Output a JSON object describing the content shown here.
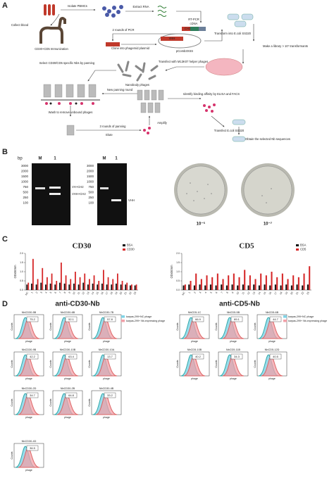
{
  "panel_a": {
    "label": "A",
    "texts": [
      "Isolate PBMCs",
      "Extract RNA",
      "Collect blood",
      "RT-PCR",
      "CD30+CD5 Immunization",
      "cDNA",
      "2 rounds of PCR",
      "Clone into phagemid plasmid",
      "pComb3XSS",
      "Transform into E.coli SS320",
      "Make a library > 10⁷ transformants",
      "Select CD30/CD5 specific Nbs by panning",
      "Transfect with M13K07 helper phages",
      "Nanobody phages",
      "New panning round",
      "Identify binding affinity by ELISA and FACS",
      "Wash to remove unbound phages",
      "3 rounds of panning",
      "Amplify",
      "Elute",
      "Transfect E.coli SS320",
      "Obtain the selected Nb sequences",
      "VHH",
      "CH2"
    ]
  },
  "panel_b": {
    "label": "B",
    "bp": "bp",
    "lanes": [
      "M",
      "1"
    ],
    "markers": [
      "3000",
      "2000",
      "1500",
      "1000",
      "750",
      "500",
      "250",
      "100"
    ],
    "gel1_bands": [
      "VH+CH2",
      "VHH+CH2"
    ],
    "gel2_band": "VHH",
    "plates": [
      "10⁻⁵",
      "10⁻⁷"
    ]
  },
  "panel_c": {
    "label": "C",
    "charts": [
      {
        "type": "bar",
        "title": "CD30",
        "y_label": "OD450nm",
        "categories": [
          "NC",
          "1",
          "2",
          "3",
          "4",
          "5",
          "6",
          "7",
          "8",
          "9",
          "10",
          "11",
          "12",
          "13",
          "14",
          "15",
          "16",
          "17",
          "18",
          "19",
          "20",
          "21",
          "22",
          "23"
        ],
        "ylim": [
          0,
          2
        ],
        "yticks": [
          {
            "value": 0,
            "label": "0.0"
          },
          {
            "value": 0.5,
            "label": "0.5"
          },
          {
            "value": 1,
            "label": "1.0"
          },
          {
            "value": 1.5,
            "label": "1.5"
          },
          {
            "value": 2,
            "label": "2.0"
          }
        ],
        "series": [
          {
            "name": "BSA",
            "color": "#111111",
            "values": [
              0.3,
              0.35,
              0.3,
              0.4,
              0.3,
              0.35,
              0.3,
              0.4,
              0.35,
              0.3,
              0.35,
              0.3,
              0.4,
              0.3,
              0.35,
              0.3,
              0.35,
              0.3,
              0.3,
              0.35,
              0.3,
              0.3,
              0.25,
              0.25
            ]
          },
          {
            "name": "CD30",
            "color": "#d62728",
            "values": [
              0.4,
              1.7,
              0.6,
              1.2,
              0.7,
              0.9,
              0.5,
              1.5,
              0.8,
              0.6,
              1.0,
              0.7,
              0.9,
              0.6,
              0.8,
              0.5,
              1.1,
              0.7,
              0.6,
              0.9,
              0.5,
              0.4,
              0.3,
              0.3
            ]
          }
        ]
      },
      {
        "type": "bar",
        "title": "CD5",
        "y_label": "OD450nm",
        "categories": [
          "NC",
          "1",
          "2",
          "3",
          "4",
          "5",
          "6",
          "7",
          "8",
          "9",
          "10",
          "11",
          "12",
          "13",
          "14",
          "15",
          "16",
          "17",
          "18",
          "19",
          "20",
          "21",
          "22",
          "23"
        ],
        "ylim": [
          0,
          2
        ],
        "yticks": [
          {
            "value": 0,
            "label": "0.0"
          },
          {
            "value": 0.5,
            "label": "0.5"
          },
          {
            "value": 1,
            "label": "1.0"
          },
          {
            "value": 1.5,
            "label": "1.5"
          },
          {
            "value": 2,
            "label": "2.0"
          }
        ],
        "series": [
          {
            "name": "BSA",
            "color": "#111111",
            "values": [
              0.25,
              0.3,
              0.25,
              0.3,
              0.25,
              0.3,
              0.25,
              0.3,
              0.25,
              0.3,
              0.25,
              0.3,
              0.25,
              0.3,
              0.25,
              0.3,
              0.25,
              0.3,
              0.25,
              0.3,
              0.25,
              0.3,
              0.25,
              0.3
            ]
          },
          {
            "name": "CD5",
            "color": "#d62728",
            "values": [
              0.3,
              0.5,
              0.9,
              0.6,
              0.8,
              0.7,
              0.9,
              0.6,
              0.8,
              0.9,
              0.7,
              1.1,
              0.8,
              0.6,
              0.9,
              0.8,
              1.0,
              0.7,
              0.9,
              0.6,
              0.8,
              0.7,
              0.9,
              1.3
            ]
          }
        ]
      }
    ]
  },
  "panel_d": {
    "label": "D",
    "x_label": "phage",
    "y_label": "Counts",
    "legend": [
      "karpas-299+NC phage",
      "karpas-299+ Nb-expressing phage"
    ],
    "groups": [
      {
        "title": "anti-CD30-Nb",
        "clones": [
          {
            "name": "NbCD30-5B",
            "value": 75.2
          },
          {
            "name": "NbCD30-6B",
            "value": 52.1
          },
          {
            "name": "NbCD30-7B",
            "value": 57.8
          },
          {
            "name": "NbCD30-9B",
            "value": 42.2
          },
          {
            "name": "NbCD30-10B",
            "value": 63.4
          },
          {
            "name": "NbCD30-10A",
            "value": 13.7
          },
          {
            "name": "NbCD30-2D",
            "value": 34.7
          },
          {
            "name": "NbCD30-2B",
            "value": 64.8
          },
          {
            "name": "NbCD30-4B",
            "value": 33.2
          },
          {
            "name": "NbCD30-4D",
            "value": 36.5
          }
        ]
      },
      {
        "title": "anti-CD5-Nb",
        "clones": [
          {
            "name": "NbCD5-1C",
            "value": 66.9
          },
          {
            "name": "NbCD5-5B",
            "value": 89.1
          },
          {
            "name": "NbCD5-6B",
            "value": 44.7
          },
          {
            "name": "NbCD5-10B",
            "value": 40.2
          },
          {
            "name": "NbCD5-11B",
            "value": 34.3
          },
          {
            "name": "NbCD5-12D",
            "value": 40.5
          }
        ]
      }
    ]
  }
}
